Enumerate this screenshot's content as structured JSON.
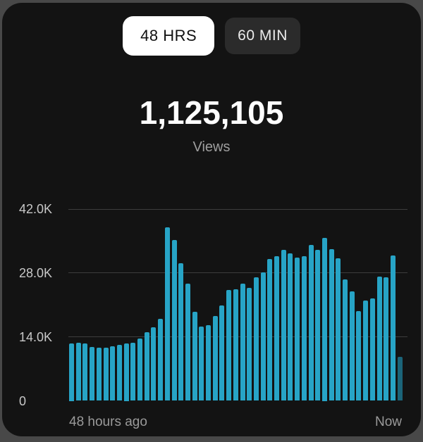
{
  "toggle": {
    "options": [
      {
        "label": "48 HRS",
        "selected": true
      },
      {
        "label": "60 MIN",
        "selected": false
      }
    ]
  },
  "metric": {
    "value": "1,125,105",
    "label": "Views"
  },
  "chart_data": {
    "type": "bar",
    "unit": "views per hour",
    "ylim": [
      0,
      42000
    ],
    "y_ticks": [
      {
        "label": "42.0K",
        "value": 42000
      },
      {
        "label": "28.0K",
        "value": 28000
      },
      {
        "label": "14.0K",
        "value": 14000
      },
      {
        "label": "0",
        "value": 0
      }
    ],
    "x_start_label": "48 hours ago",
    "x_end_label": "Now",
    "grid": true,
    "values": [
      12600,
      12700,
      12500,
      11800,
      11600,
      11700,
      12000,
      12300,
      12600,
      12700,
      13700,
      15000,
      16100,
      18000,
      38000,
      35200,
      30100,
      25700,
      19500,
      16200,
      16600,
      18600,
      20900,
      24300,
      24500,
      25600,
      24700,
      27000,
      28100,
      31000,
      31700,
      33100,
      32300,
      31300,
      31600,
      34100,
      33000,
      35700,
      33200,
      31200,
      26600,
      24000,
      19600,
      21900,
      22400,
      27200,
      27000,
      31900,
      9700
    ],
    "last_bar_partial": true
  },
  "colors": {
    "page_bg": "#484848",
    "card_bg": "#131313",
    "bar": "#27a4c6",
    "bar_partial": "#1b6479",
    "gridline": "#3d3d3d",
    "metric_text": "#fdfdfd",
    "secondary_text": "#9e9e9e",
    "tick_text": "#c8c8c8",
    "pill_selected_bg": "#ffffff",
    "pill_selected_text": "#101010",
    "pill_unselected_bg": "#2b2b2b",
    "pill_unselected_text": "#ebebeb"
  }
}
